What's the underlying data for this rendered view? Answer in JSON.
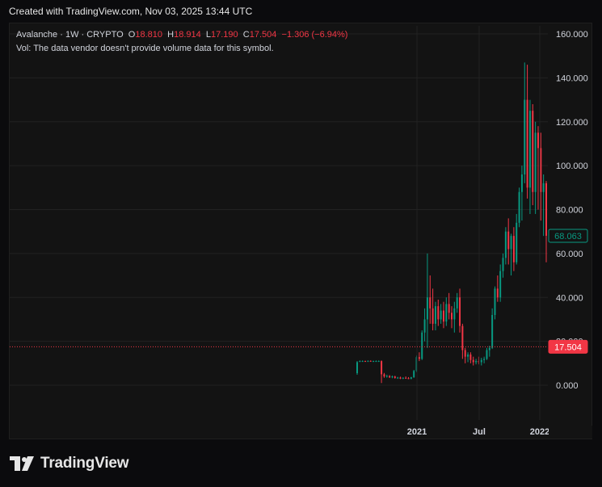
{
  "header": {
    "created": "Created with TradingView.com, Nov 03, 2025 13:44 UTC"
  },
  "legend": {
    "symbol": "Avalanche · 1W · CRYPTO",
    "o_label": "O",
    "o_value": "18.810",
    "h_label": "H",
    "h_value": "18.914",
    "l_label": "L",
    "l_value": "17.190",
    "c_label": "C",
    "c_value": "17.504",
    "change": "−1.306 (−6.94%)",
    "vol_note": "Vol: The data vendor doesn't provide volume data for this symbol."
  },
  "footer": {
    "brand": "TradingView",
    "logo_icon": "tradingview-logo-icon"
  },
  "colors": {
    "up": "#089981",
    "down": "#f23645",
    "background": "#131313",
    "grid": "#222222",
    "text": "#d1d4dc"
  },
  "chart_data": {
    "type": "candlestick",
    "y_ticks": [
      "160.000",
      "140.000",
      "120.000",
      "100.000",
      "80.000",
      "60.000",
      "40.000",
      "20.000",
      "0.000"
    ],
    "x_ticks": [
      "2021",
      "Jul",
      "2022"
    ],
    "ylim": [
      -15,
      165
    ],
    "grid": true,
    "price_labels": [
      {
        "value": 68.063,
        "text": "68.063",
        "style": "outline-green"
      },
      {
        "value": 17.504,
        "text": "17.504",
        "style": "fill-red",
        "dotted_line": true
      }
    ],
    "candles": [
      {
        "o": 5.5,
        "h": 11.0,
        "l": 4.8,
        "c": 10.5
      },
      {
        "o": 11.0,
        "h": 11.3,
        "l": 10.6,
        "c": 11.0
      },
      {
        "o": 11.0,
        "h": 11.3,
        "l": 10.7,
        "c": 11.0
      },
      {
        "o": 11.0,
        "h": 11.2,
        "l": 10.7,
        "c": 10.9
      },
      {
        "o": 10.9,
        "h": 11.3,
        "l": 10.6,
        "c": 11.1
      },
      {
        "o": 11.1,
        "h": 11.3,
        "l": 10.7,
        "c": 10.9
      },
      {
        "o": 10.9,
        "h": 11.2,
        "l": 10.6,
        "c": 11.0
      },
      {
        "o": 11.0,
        "h": 11.3,
        "l": 10.7,
        "c": 11.0
      },
      {
        "o": 11.0,
        "h": 11.3,
        "l": 10.7,
        "c": 11.0
      },
      {
        "o": 11.0,
        "h": 11.3,
        "l": 1.0,
        "c": 5.0
      },
      {
        "o": 5.0,
        "h": 5.6,
        "l": 3.4,
        "c": 4.0
      },
      {
        "o": 4.0,
        "h": 4.8,
        "l": 3.5,
        "c": 4.2
      },
      {
        "o": 4.2,
        "h": 4.6,
        "l": 3.3,
        "c": 3.6
      },
      {
        "o": 3.6,
        "h": 4.4,
        "l": 3.2,
        "c": 4.0
      },
      {
        "o": 4.0,
        "h": 4.3,
        "l": 3.0,
        "c": 3.3
      },
      {
        "o": 3.3,
        "h": 3.8,
        "l": 2.9,
        "c": 3.5
      },
      {
        "o": 3.5,
        "h": 3.9,
        "l": 2.8,
        "c": 3.0
      },
      {
        "o": 3.0,
        "h": 3.6,
        "l": 2.8,
        "c": 3.4
      },
      {
        "o": 3.4,
        "h": 4.0,
        "l": 2.9,
        "c": 3.2
      },
      {
        "o": 3.2,
        "h": 3.7,
        "l": 2.8,
        "c": 3.0
      },
      {
        "o": 3.0,
        "h": 3.8,
        "l": 2.7,
        "c": 3.6
      },
      {
        "o": 3.6,
        "h": 7.0,
        "l": 3.4,
        "c": 6.5
      },
      {
        "o": 6.5,
        "h": 13.5,
        "l": 6.0,
        "c": 12.8
      },
      {
        "o": 12.8,
        "h": 15.0,
        "l": 11.0,
        "c": 12.0
      },
      {
        "o": 12.0,
        "h": 25.0,
        "l": 11.5,
        "c": 24.0
      },
      {
        "o": 24.0,
        "h": 35.0,
        "l": 20.0,
        "c": 30.0
      },
      {
        "o": 30.0,
        "h": 60.0,
        "l": 17.0,
        "c": 40.0
      },
      {
        "o": 40.0,
        "h": 50.0,
        "l": 28.0,
        "c": 35.0
      },
      {
        "o": 35.0,
        "h": 44.0,
        "l": 25.0,
        "c": 28.0
      },
      {
        "o": 28.0,
        "h": 38.0,
        "l": 25.0,
        "c": 36.0
      },
      {
        "o": 36.0,
        "h": 39.0,
        "l": 27.0,
        "c": 30.0
      },
      {
        "o": 30.0,
        "h": 37.0,
        "l": 28.0,
        "c": 34.0
      },
      {
        "o": 34.0,
        "h": 38.0,
        "l": 26.0,
        "c": 29.0
      },
      {
        "o": 29.0,
        "h": 40.0,
        "l": 27.0,
        "c": 37.0
      },
      {
        "o": 37.0,
        "h": 42.0,
        "l": 30.0,
        "c": 33.0
      },
      {
        "o": 33.0,
        "h": 36.0,
        "l": 26.0,
        "c": 30.0
      },
      {
        "o": 30.0,
        "h": 38.0,
        "l": 24.0,
        "c": 35.0
      },
      {
        "o": 35.0,
        "h": 42.0,
        "l": 33.0,
        "c": 40.0
      },
      {
        "o": 40.0,
        "h": 44.0,
        "l": 24.0,
        "c": 27.0
      },
      {
        "o": 27.0,
        "h": 28.0,
        "l": 12.0,
        "c": 16.0
      },
      {
        "o": 16.0,
        "h": 17.0,
        "l": 10.0,
        "c": 13.0
      },
      {
        "o": 13.0,
        "h": 15.0,
        "l": 10.5,
        "c": 14.0
      },
      {
        "o": 14.0,
        "h": 15.0,
        "l": 10.0,
        "c": 11.5
      },
      {
        "o": 11.5,
        "h": 13.0,
        "l": 9.0,
        "c": 10.5
      },
      {
        "o": 10.5,
        "h": 12.0,
        "l": 9.5,
        "c": 11.0
      },
      {
        "o": 11.0,
        "h": 13.0,
        "l": 9.5,
        "c": 10.5
      },
      {
        "o": 10.5,
        "h": 12.5,
        "l": 9.0,
        "c": 11.5
      },
      {
        "o": 11.5,
        "h": 13.0,
        "l": 10.0,
        "c": 12.0
      },
      {
        "o": 12.0,
        "h": 17.0,
        "l": 11.5,
        "c": 16.0
      },
      {
        "o": 16.0,
        "h": 18.0,
        "l": 13.0,
        "c": 17.0
      },
      {
        "o": 17.0,
        "h": 35.0,
        "l": 16.5,
        "c": 32.0
      },
      {
        "o": 32.0,
        "h": 45.0,
        "l": 30.0,
        "c": 44.0
      },
      {
        "o": 44.0,
        "h": 50.0,
        "l": 38.0,
        "c": 40.0
      },
      {
        "o": 40.0,
        "h": 55.0,
        "l": 38.0,
        "c": 52.0
      },
      {
        "o": 52.0,
        "h": 60.0,
        "l": 49.0,
        "c": 58.0
      },
      {
        "o": 58.0,
        "h": 72.0,
        "l": 55.0,
        "c": 70.0
      },
      {
        "o": 70.0,
        "h": 76.0,
        "l": 55.0,
        "c": 62.0
      },
      {
        "o": 62.0,
        "h": 69.0,
        "l": 50.0,
        "c": 68.0
      },
      {
        "o": 68.0,
        "h": 72.0,
        "l": 52.0,
        "c": 56.0
      },
      {
        "o": 56.0,
        "h": 78.0,
        "l": 55.0,
        "c": 74.0
      },
      {
        "o": 74.0,
        "h": 90.0,
        "l": 72.0,
        "c": 88.0
      },
      {
        "o": 88.0,
        "h": 100.0,
        "l": 75.0,
        "c": 96.0
      },
      {
        "o": 96.0,
        "h": 147.0,
        "l": 92.0,
        "c": 130.0
      },
      {
        "o": 130.0,
        "h": 146.0,
        "l": 85.0,
        "c": 90.0
      },
      {
        "o": 90.0,
        "h": 130.0,
        "l": 78.0,
        "c": 125.0
      },
      {
        "o": 125.0,
        "h": 128.0,
        "l": 82.0,
        "c": 88.0
      },
      {
        "o": 88.0,
        "h": 120.0,
        "l": 78.0,
        "c": 115.0
      },
      {
        "o": 115.0,
        "h": 118.0,
        "l": 80.0,
        "c": 108.0
      },
      {
        "o": 108.0,
        "h": 115.0,
        "l": 75.0,
        "c": 88.0
      },
      {
        "o": 88.0,
        "h": 96.0,
        "l": 68.0,
        "c": 92.0
      },
      {
        "o": 92.0,
        "h": 93.0,
        "l": 56.0,
        "c": 68.063
      }
    ]
  }
}
